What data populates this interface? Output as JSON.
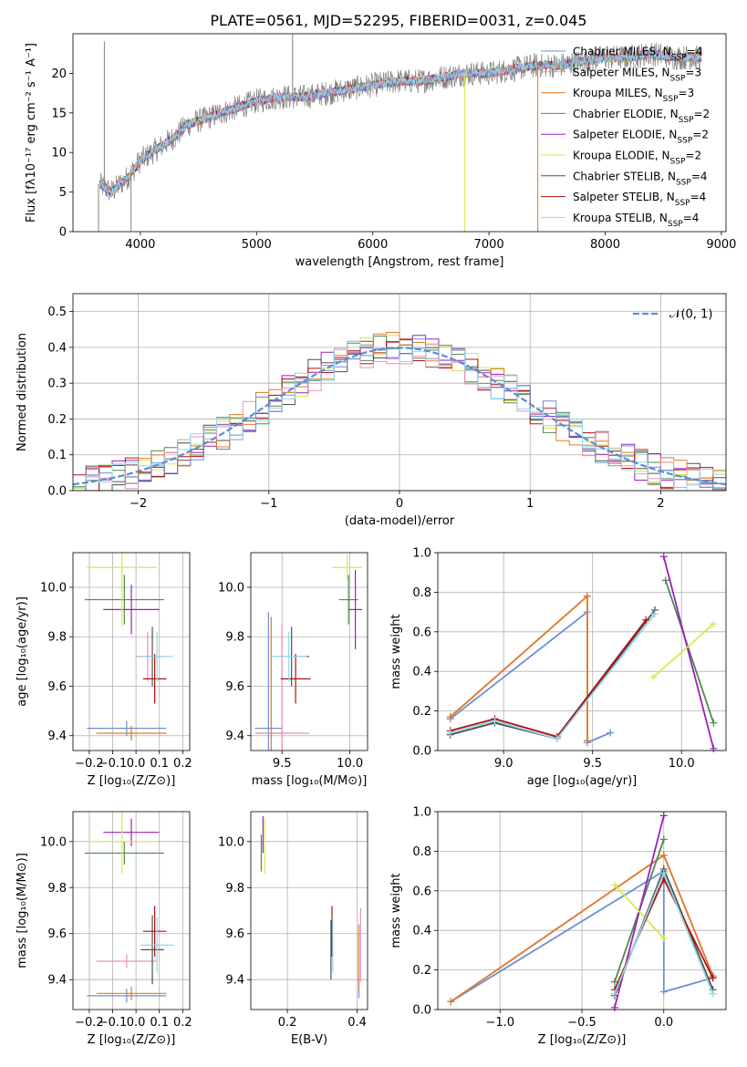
{
  "title": "PLATE=0561, MJD=52295, FIBERID=0031, z=0.045",
  "colors": {
    "Chabrier MILES": "#6d8fd6",
    "Salpeter MILES": "#e890c0",
    "Kroupa MILES": "#e07a2a",
    "Chabrier ELODIE": "#4f8a4f",
    "Salpeter ELODIE": "#9a22b8",
    "Kroupa ELODIE": "#d4ea4a",
    "Chabrier STELIB": "#505050",
    "Salpeter STELIB": "#b01010",
    "Kroupa STELIB": "#8fd8e8",
    "Data": "#808080",
    "Gaussian": "#5b8dd6"
  },
  "legend1": [
    {
      "model": "Chabrier MILES",
      "pre": "Chabrier MILES, N",
      "sub": "SSP",
      "post": "=4"
    },
    {
      "model": "Salpeter MILES",
      "pre": "Salpeter MILES, N",
      "sub": "SSP",
      "post": "=3"
    },
    {
      "model": "Kroupa MILES",
      "pre": "Kroupa MILES, N",
      "sub": "SSP",
      "post": "=3"
    },
    {
      "model": "Chabrier ELODIE",
      "pre": "Chabrier ELODIE, N",
      "sub": "SSP",
      "post": "=2"
    },
    {
      "model": "Salpeter ELODIE",
      "pre": "Salpeter ELODIE, N",
      "sub": "SSP",
      "post": "=2"
    },
    {
      "model": "Kroupa ELODIE",
      "pre": "Kroupa ELODIE, N",
      "sub": "SSP",
      "post": "=2"
    },
    {
      "model": "Chabrier STELIB",
      "pre": "Chabrier STELIB, N",
      "sub": "SSP",
      "post": "=4"
    },
    {
      "model": "Salpeter STELIB",
      "pre": "Salpeter STELIB, N",
      "sub": "SSP",
      "post": "=4"
    },
    {
      "model": "Kroupa STELIB",
      "pre": "Kroupa STELIB, N",
      "sub": "SSP",
      "post": "=4"
    }
  ],
  "legend2": {
    "label": "𝒩(0, 1)"
  },
  "chart_data": [
    {
      "id": "spectrum",
      "type": "line",
      "xlabel": "wavelength [Angstrom, rest frame]",
      "ylabel": "Flux [fλ10⁻¹⁷ erg cm⁻² s⁻¹ A⁻¹]",
      "xlim": [
        3420,
        9040
      ],
      "ylim": [
        0,
        25
      ],
      "xticks": [
        4000,
        5000,
        6000,
        7000,
        8000,
        9000
      ],
      "yticks": [
        0,
        5,
        10,
        15,
        20
      ],
      "continuum": [
        [
          3650,
          6
        ],
        [
          3750,
          5
        ],
        [
          3900,
          7
        ],
        [
          4000,
          9
        ],
        [
          4100,
          10
        ],
        [
          4200,
          11
        ],
        [
          4300,
          12
        ],
        [
          4400,
          13.5
        ],
        [
          4500,
          14
        ],
        [
          4700,
          15
        ],
        [
          4900,
          16
        ],
        [
          5000,
          16.5
        ],
        [
          5200,
          17
        ],
        [
          5400,
          17
        ],
        [
          5600,
          17.5
        ],
        [
          5800,
          18
        ],
        [
          6000,
          18.5
        ],
        [
          6200,
          19
        ],
        [
          6400,
          19
        ],
        [
          6600,
          19.5
        ],
        [
          6800,
          20
        ],
        [
          7000,
          20
        ],
        [
          7200,
          20.5
        ],
        [
          7400,
          21
        ],
        [
          7600,
          21
        ],
        [
          7800,
          21.5
        ],
        [
          8000,
          22
        ],
        [
          8200,
          22
        ],
        [
          8400,
          22.5
        ],
        [
          8600,
          22
        ],
        [
          8830,
          22
        ]
      ],
      "spikes": [
        [
          3640,
          0
        ],
        [
          3690,
          24
        ],
        [
          3920,
          0
        ],
        [
          5310,
          25
        ],
        [
          6790,
          0
        ],
        [
          7420,
          0
        ]
      ]
    },
    {
      "id": "residuals",
      "type": "histogram",
      "xlabel": "(data-model)/error",
      "ylabel": "Normed distribution",
      "xlim": [
        -2.5,
        2.5
      ],
      "ylim": [
        0,
        0.55
      ],
      "xticks": [
        -2,
        -1,
        0,
        1,
        2
      ],
      "yticks": [
        0.0,
        0.1,
        0.2,
        0.3,
        0.4,
        0.5
      ],
      "bin_width": 0.1,
      "gaussian": {
        "mean": 0,
        "sigma": 1
      }
    },
    {
      "id": "age_vs_Z",
      "type": "errorbar",
      "xlabel": "Z [log₁₀(Z/Z⊙)]",
      "ylabel": "age  [log₁₀(age/yr)]",
      "xlim": [
        -0.27,
        0.23
      ],
      "ylim": [
        9.34,
        10.14
      ],
      "xticks": [
        -0.2,
        -0.1,
        0.0,
        0.1,
        0.2
      ],
      "yticks": [
        9.4,
        9.6,
        9.8,
        10.0
      ],
      "points": [
        {
          "model": "Chabrier MILES",
          "x": -0.04,
          "xerr": 0.17,
          "y": 9.43,
          "yerr": 0.03
        },
        {
          "model": "Kroupa MILES",
          "x": -0.02,
          "xerr": 0.15,
          "y": 9.41,
          "yerr": 0.03
        },
        {
          "model": "Salpeter MILES",
          "x": 0.05,
          "xerr": 0.05,
          "y": 9.72,
          "yerr": 0.1
        },
        {
          "model": "Chabrier ELODIE",
          "x": -0.05,
          "xerr": 0.17,
          "y": 9.95,
          "yerr": 0.1
        },
        {
          "model": "Salpeter ELODIE",
          "x": -0.02,
          "xerr": 0.12,
          "y": 9.91,
          "yerr": 0.1
        },
        {
          "model": "Kroupa ELODIE",
          "x": -0.06,
          "xerr": 0.15,
          "y": 10.08,
          "yerr": 0.24
        },
        {
          "model": "Chabrier STELIB",
          "x": 0.07,
          "xerr": 0.05,
          "y": 9.72,
          "yerr": 0.12
        },
        {
          "model": "Salpeter STELIB",
          "x": 0.08,
          "xerr": 0.05,
          "y": 9.63,
          "yerr": 0.1
        },
        {
          "model": "Kroupa STELIB",
          "x": 0.09,
          "xerr": 0.07,
          "y": 9.72,
          "yerr": 0.1
        }
      ]
    },
    {
      "id": "age_vs_mass",
      "type": "errorbar",
      "xlabel": "mass [log₁₀(M/M⊙)]",
      "xlim": [
        9.27,
        10.13
      ],
      "ylim": [
        9.34,
        10.14
      ],
      "xticks": [
        9.5,
        10.0
      ],
      "yticks": [
        9.4,
        9.6,
        9.8,
        10.0
      ],
      "points": [
        {
          "model": "Chabrier MILES",
          "x": 9.4,
          "xerr": 0.1,
          "y": 9.43,
          "yerr": 0.47
        },
        {
          "model": "Kroupa MILES",
          "x": 9.42,
          "xerr": 0.1,
          "y": 9.41,
          "yerr": 0.47
        },
        {
          "model": "Salpeter MILES",
          "x": 9.5,
          "xerr": 0.2,
          "y": 9.41,
          "yerr": 0.44
        },
        {
          "model": "Chabrier ELODIE",
          "x": 9.99,
          "xerr": 0.07,
          "y": 9.95,
          "yerr": 0.1
        },
        {
          "model": "Salpeter ELODIE",
          "x": 10.04,
          "xerr": 0.05,
          "y": 9.91,
          "yerr": 0.16
        },
        {
          "model": "Kroupa ELODIE",
          "x": 9.98,
          "xerr": 0.11,
          "y": 10.08,
          "yerr": 0.05
        },
        {
          "model": "Chabrier STELIB",
          "x": 9.57,
          "xerr": 0.13,
          "y": 9.72,
          "yerr": 0.12
        },
        {
          "model": "Salpeter STELIB",
          "x": 9.6,
          "xerr": 0.11,
          "y": 9.63,
          "yerr": 0.1
        },
        {
          "model": "Kroupa STELIB",
          "x": 9.55,
          "xerr": 0.13,
          "y": 9.72,
          "yerr": 0.1
        }
      ]
    },
    {
      "id": "weight_vs_age",
      "type": "line",
      "xlabel": "age  [log₁₀(age/yr)]",
      "ylabel": "mass weight",
      "xlim": [
        8.63,
        10.25
      ],
      "ylim": [
        0,
        1
      ],
      "xticks": [
        9.0,
        9.5,
        10.0
      ],
      "yticks": [
        0.0,
        0.2,
        0.4,
        0.6,
        0.8,
        1.0
      ],
      "series": [
        {
          "model": "Chabrier MILES",
          "points": [
            [
              8.7,
              0.16
            ],
            [
              9.47,
              0.7
            ],
            [
              9.47,
              0.04
            ],
            [
              9.6,
              0.09
            ]
          ]
        },
        {
          "model": "Salpeter MILES",
          "points": [
            [
              8.7,
              0.17
            ],
            [
              9.47,
              0.78
            ],
            [
              9.47,
              0.05
            ]
          ]
        },
        {
          "model": "Kroupa MILES",
          "points": [
            [
              8.7,
              0.17
            ],
            [
              9.47,
              0.78
            ],
            [
              9.47,
              0.05
            ]
          ]
        },
        {
          "model": "Chabrier ELODIE",
          "points": [
            [
              9.91,
              0.86
            ],
            [
              10.18,
              0.14
            ]
          ]
        },
        {
          "model": "Salpeter ELODIE",
          "points": [
            [
              9.9,
              0.98
            ],
            [
              10.18,
              0.01
            ]
          ]
        },
        {
          "model": "Kroupa ELODIE",
          "points": [
            [
              9.84,
              0.37
            ],
            [
              10.18,
              0.64
            ]
          ]
        },
        {
          "model": "Chabrier STELIB",
          "points": [
            [
              8.7,
              0.08
            ],
            [
              8.95,
              0.14
            ],
            [
              9.3,
              0.06
            ],
            [
              9.85,
              0.71
            ]
          ]
        },
        {
          "model": "Salpeter STELIB",
          "points": [
            [
              8.7,
              0.1
            ],
            [
              8.95,
              0.16
            ],
            [
              9.3,
              0.07
            ],
            [
              9.8,
              0.66
            ]
          ]
        },
        {
          "model": "Kroupa STELIB",
          "points": [
            [
              8.7,
              0.09
            ],
            [
              8.95,
              0.15
            ],
            [
              9.3,
              0.06
            ],
            [
              9.85,
              0.69
            ]
          ]
        }
      ]
    },
    {
      "id": "mass_vs_Z",
      "type": "errorbar",
      "xlabel": "Z [log₁₀(Z/Z⊙)]",
      "ylabel": "mass [log₁₀(M/M⊙)]",
      "xlim": [
        -0.27,
        0.23
      ],
      "ylim": [
        9.27,
        10.13
      ],
      "xticks": [
        -0.2,
        -0.1,
        0.0,
        0.1,
        0.2
      ],
      "yticks": [
        9.4,
        9.6,
        9.8,
        10.0
      ],
      "points": [
        {
          "model": "Chabrier MILES",
          "x": -0.04,
          "xerr": 0.17,
          "y": 9.33,
          "yerr": 0.03
        },
        {
          "model": "Kroupa MILES",
          "x": -0.02,
          "xerr": 0.15,
          "y": 9.34,
          "yerr": 0.03
        },
        {
          "model": "Salpeter MILES",
          "x": -0.04,
          "xerr": 0.13,
          "y": 9.48,
          "yerr": 0.03
        },
        {
          "model": "Chabrier ELODIE",
          "x": -0.05,
          "xerr": 0.17,
          "y": 9.95,
          "yerr": 0.05
        },
        {
          "model": "Salpeter ELODIE",
          "x": -0.02,
          "xerr": 0.12,
          "y": 10.04,
          "yerr": 0.06
        },
        {
          "model": "Kroupa ELODIE",
          "x": -0.06,
          "xerr": 0.15,
          "y": 10.0,
          "yerr": 0.14
        },
        {
          "model": "Chabrier STELIB",
          "x": 0.07,
          "xerr": 0.05,
          "y": 9.53,
          "yerr": 0.15
        },
        {
          "model": "Salpeter STELIB",
          "x": 0.08,
          "xerr": 0.05,
          "y": 9.61,
          "yerr": 0.11
        },
        {
          "model": "Kroupa STELIB",
          "x": 0.09,
          "xerr": 0.07,
          "y": 9.55,
          "yerr": 0.12
        }
      ]
    },
    {
      "id": "mass_vs_EBV",
      "type": "errorbar",
      "xlabel": "E(B-V)",
      "xlim": [
        0.095,
        0.43
      ],
      "ylim": [
        9.27,
        10.13
      ],
      "xticks": [
        0.2,
        0.4
      ],
      "yticks": [
        9.4,
        9.6,
        9.8,
        10.0
      ],
      "points": [
        {
          "model": "Chabrier MILES",
          "x": 0.405,
          "xerr": 0,
          "y": 9.46,
          "yerr": 0.14
        },
        {
          "model": "Salpeter MILES",
          "x": 0.41,
          "xerr": 0,
          "y": 9.55,
          "yerr": 0.16
        },
        {
          "model": "Kroupa MILES",
          "x": 0.405,
          "xerr": 0,
          "y": 9.5,
          "yerr": 0.14
        },
        {
          "model": "Chabrier ELODIE",
          "x": 0.125,
          "xerr": 0,
          "y": 9.95,
          "yerr": 0.08
        },
        {
          "model": "Salpeter ELODIE",
          "x": 0.13,
          "xerr": 0,
          "y": 10.03,
          "yerr": 0.08
        },
        {
          "model": "Kroupa ELODIE",
          "x": 0.135,
          "xerr": 0,
          "y": 9.98,
          "yerr": 0.12
        },
        {
          "model": "Chabrier STELIB",
          "x": 0.325,
          "xerr": 0,
          "y": 9.53,
          "yerr": 0.13
        },
        {
          "model": "Salpeter STELIB",
          "x": 0.328,
          "xerr": 0,
          "y": 9.61,
          "yerr": 0.11
        },
        {
          "model": "Kroupa STELIB",
          "x": 0.33,
          "xerr": 0,
          "y": 9.55,
          "yerr": 0.12
        }
      ]
    },
    {
      "id": "weight_vs_Z",
      "type": "line",
      "xlabel": "Z [log₁₀(Z/Z⊙)]",
      "ylabel": "mass weight",
      "xlim": [
        -1.38,
        0.38
      ],
      "ylim": [
        0,
        1
      ],
      "xticks": [
        -1.0,
        -0.5,
        0.0
      ],
      "yticks": [
        0.0,
        0.2,
        0.4,
        0.6,
        0.8,
        1.0
      ],
      "series": [
        {
          "model": "Chabrier MILES",
          "points": [
            [
              -1.3,
              0.04
            ],
            [
              0.0,
              0.7
            ],
            [
              0.0,
              0.09
            ],
            [
              0.3,
              0.16
            ]
          ]
        },
        {
          "model": "Salpeter MILES",
          "points": [
            [
              -1.3,
              0.04
            ],
            [
              0.0,
              0.78
            ],
            [
              0.3,
              0.17
            ]
          ]
        },
        {
          "model": "Kroupa MILES",
          "points": [
            [
              -1.3,
              0.04
            ],
            [
              0.0,
              0.78
            ],
            [
              0.3,
              0.17
            ]
          ]
        },
        {
          "model": "Chabrier ELODIE",
          "points": [
            [
              -0.3,
              0.14
            ],
            [
              0.0,
              0.86
            ]
          ]
        },
        {
          "model": "Salpeter ELODIE",
          "points": [
            [
              -0.3,
              0.01
            ],
            [
              0.0,
              0.98
            ]
          ]
        },
        {
          "model": "Kroupa ELODIE",
          "points": [
            [
              -0.3,
              0.63
            ],
            [
              0.0,
              0.36
            ]
          ]
        },
        {
          "model": "Chabrier STELIB",
          "points": [
            [
              -0.3,
              0.07
            ],
            [
              0.0,
              0.71
            ],
            [
              0.3,
              0.1
            ]
          ]
        },
        {
          "model": "Salpeter STELIB",
          "points": [
            [
              -0.3,
              0.1
            ],
            [
              0.0,
              0.66
            ],
            [
              0.3,
              0.16
            ]
          ]
        },
        {
          "model": "Kroupa STELIB",
          "points": [
            [
              -0.3,
              0.08
            ],
            [
              0.0,
              0.69
            ],
            [
              0.3,
              0.08
            ]
          ]
        }
      ]
    }
  ]
}
